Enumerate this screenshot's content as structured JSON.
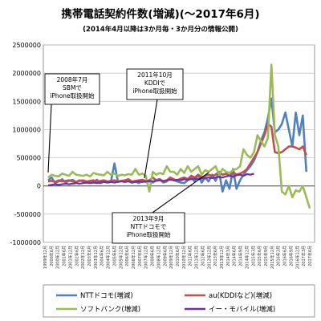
{
  "chart_data": {
    "type": "line",
    "title": "携帯電話契約件数(増減)(～2017年6月)",
    "subtitle": "(2014年4月以降は3か月毎・3か月分の情報公開)",
    "ylim": [
      -1000000,
      2500000
    ],
    "yticks": [
      2500000,
      2000000,
      1500000,
      1000000,
      500000,
      0,
      -500000,
      -1000000
    ],
    "ytick_labels": [
      "2500000",
      "2000000",
      "1500000",
      "1000000",
      "500000",
      "0",
      "-500000",
      "-1000000"
    ],
    "grid": true,
    "legend_position": "bottom",
    "series": [
      {
        "name": "NTTドコモ(増減)",
        "color": "#4f81bd",
        "values": [
          100000,
          150000,
          50000,
          80000,
          120000,
          60000,
          90000,
          110000,
          70000,
          100000,
          80000,
          60000,
          90000,
          70000,
          110000,
          50000,
          80000,
          60000,
          70000,
          400000,
          80000,
          90000,
          70000,
          100000,
          60000,
          80000,
          50000,
          90000,
          70000,
          80000,
          60000,
          100000,
          120000,
          60000,
          80000,
          150000,
          100000,
          80000,
          60000,
          50000,
          100000,
          150000,
          80000,
          200000,
          60000,
          150000,
          80000,
          200000,
          90000,
          250000,
          -100000,
          100000,
          -50000,
          300000,
          -50000,
          100000,
          200000,
          280000,
          350000,
          450000,
          600000,
          800000,
          950000,
          1200000,
          1550000,
          950000,
          1000000,
          1100000,
          1300000,
          1000000,
          700000,
          1300000,
          900000,
          1250000,
          250000
        ]
      },
      {
        "name": "au(KDDIなど)(増減)",
        "color": "#c0504d",
        "values": [
          80000,
          90000,
          70000,
          100000,
          80000,
          90000,
          100000,
          80000,
          70000,
          90000,
          100000,
          80000,
          90000,
          100000,
          80000,
          90000,
          100000,
          80000,
          90000,
          100000,
          80000,
          90000,
          100000,
          120000,
          80000,
          90000,
          100000,
          110000,
          90000,
          100000,
          150000,
          100000,
          120000,
          80000,
          100000,
          150000,
          120000,
          100000,
          130000,
          150000,
          120000,
          180000,
          150000,
          200000,
          150000,
          180000,
          200000,
          180000,
          200000,
          250000,
          200000,
          220000,
          180000,
          250000,
          200000,
          220000,
          250000,
          300000,
          400000,
          500000,
          600000,
          750000,
          900000,
          1100000,
          1050000,
          600000,
          580000,
          600000,
          650000,
          700000,
          700000,
          680000,
          650000,
          700000,
          550000
        ]
      },
      {
        "name": "ソフトバンク(増減)",
        "color": "#9bbb59",
        "values": [
          150000,
          200000,
          180000,
          170000,
          220000,
          200000,
          180000,
          250000,
          200000,
          190000,
          180000,
          200000,
          170000,
          230000,
          210000,
          200000,
          190000,
          250000,
          200000,
          220000,
          180000,
          200000,
          190000,
          210000,
          200000,
          300000,
          200000,
          220000,
          180000,
          -100000,
          250000,
          200000,
          230000,
          210000,
          350000,
          250000,
          250000,
          200000,
          300000,
          230000,
          350000,
          250000,
          300000,
          350000,
          200000,
          280000,
          250000,
          300000,
          350000,
          200000,
          300000,
          250000,
          230000,
          280000,
          300000,
          350000,
          650000,
          550000,
          500000,
          600000,
          900000,
          800000,
          700000,
          850000,
          2150000,
          900000,
          700000,
          -100000,
          -150000,
          0,
          -200000,
          -80000,
          -100000,
          0,
          -200000,
          -400000
        ]
      },
      {
        "name": "イー・モバイル(増減)",
        "color": "#7030a0",
        "values": [
          10000,
          20000,
          30000,
          20000,
          30000,
          40000,
          30000,
          40000,
          50000,
          40000,
          50000,
          60000,
          50000,
          60000,
          50000,
          60000,
          70000,
          60000,
          70000,
          60000,
          70000,
          80000,
          70000,
          80000,
          60000,
          70000,
          80000,
          70000,
          80000,
          90000,
          80000,
          90000,
          100000,
          90000,
          100000,
          110000,
          100000,
          110000,
          100000,
          120000,
          110000,
          120000,
          130000,
          120000,
          130000,
          140000,
          150000,
          140000,
          150000,
          160000,
          150000,
          170000,
          180000,
          160000,
          190000,
          200000,
          180000,
          210000,
          200000,
          220000
        ]
      }
    ],
    "annotations": [
      {
        "lines": [
          "2008年7月",
          "SBMで",
          "iPhone取扱開始"
        ]
      },
      {
        "lines": [
          "2011年10月",
          "KDDIで",
          "iPhone取扱開始"
        ]
      },
      {
        "lines": [
          "2013年9月",
          "NTTドコモで",
          "iPhone取扱開始"
        ]
      }
    ],
    "x_tick_labels": [
      "1999年12月",
      "2000年6月",
      "2000年12月",
      "2001年6月",
      "2001年12月",
      "2002年6月",
      "2002年12月",
      "2003年6月",
      "2003年12月",
      "2004年6月",
      "2004年12月",
      "2005年6月",
      "2005年12月",
      "2006年6月",
      "2006年12月",
      "2007年6月",
      "2007年12月",
      "2008年6月",
      "2008年12月",
      "2009年6月",
      "2009年12月",
      "2010年6月",
      "2010年12月",
      "2011年6月",
      "2011年12月",
      "2012年6月",
      "2012年12月",
      "2013年6月",
      "2013年12月",
      "2014年3月",
      "2014年6月",
      "2014年9月",
      "2014年12月",
      "2015年3月",
      "2015年6月",
      "2015年9月",
      "2015年12月",
      "2016年3月",
      "2016年6月",
      "2016年9月",
      "2016年12月",
      "2017年3月",
      "2017年6月"
    ]
  }
}
